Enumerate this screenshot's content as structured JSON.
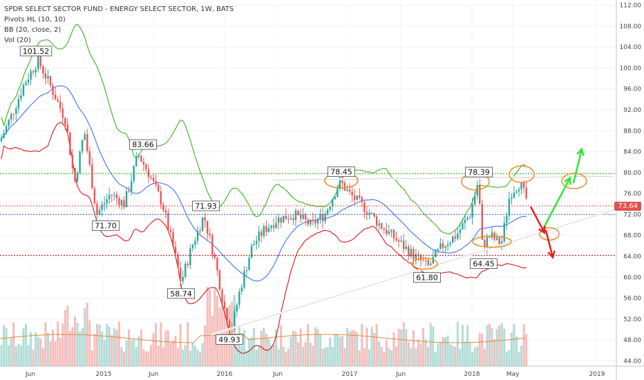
{
  "legend": {
    "title": "SPDR SELECT SECTOR FUND - ENERGY SELECT SECTOR, 1W, BATS",
    "pivots": "Pivots HL (10, 10)",
    "bb": "BB (20, close, 2)",
    "vol": "Vol (20)"
  },
  "last_price_label": "73.64",
  "colors": {
    "up": "#26a69a",
    "down": "#ef5350",
    "bb_upper": "#21b000",
    "bb_mid": "#2962ff",
    "bb_lower": "#d80000",
    "vol_ma": "#e08a3c",
    "green_arrow": "#2ee82e",
    "red_arrow": "#e81e1e",
    "circle": "#f08a24"
  },
  "chart_data": {
    "type": "candlestick",
    "timeframe": "1W",
    "x_tick_labels": [
      "Jun",
      "2015",
      "Jun",
      "2016",
      "Jun",
      "2017",
      "Jun",
      "2018",
      "May",
      "2019"
    ],
    "y_tick_labels": [
      "44.00",
      "48.00",
      "52.00",
      "56.00",
      "60.00",
      "64.00",
      "68.00",
      "72.00",
      "76.00",
      "80.00",
      "84.00",
      "88.00",
      "92.00",
      "96.00",
      "100.00",
      "104.00",
      "108.00",
      "112.00"
    ],
    "ylim": [
      43,
      113
    ],
    "pivot_labels": [
      {
        "label": "101.52",
        "value": 101.52,
        "kind": "high",
        "date_index": 0.06
      },
      {
        "label": "71.70",
        "value": 71.7,
        "kind": "low",
        "date_index": 0.16
      },
      {
        "label": "83.66",
        "value": 83.66,
        "kind": "high",
        "date_index": 0.23
      },
      {
        "label": "58.74",
        "value": 58.74,
        "kind": "low",
        "date_index": 0.29
      },
      {
        "label": "71.93",
        "value": 71.93,
        "kind": "high",
        "date_index": 0.33
      },
      {
        "label": "49.93",
        "value": 49.93,
        "kind": "low",
        "date_index": 0.37
      },
      {
        "label": "78.45",
        "value": 78.45,
        "kind": "high",
        "date_index": 0.56
      },
      {
        "label": "61.80",
        "value": 61.8,
        "kind": "low",
        "date_index": 0.69
      },
      {
        "label": "78.39",
        "value": 78.39,
        "kind": "high",
        "date_index": 0.77
      },
      {
        "label": "64.45",
        "value": 64.45,
        "kind": "low",
        "date_index": 0.78
      }
    ],
    "horizontal_levels": [
      {
        "value": 79.8,
        "color": "#21b000",
        "style": "dotted"
      },
      {
        "value": 73.64,
        "color": "#e0524f",
        "style": "dotted"
      },
      {
        "value": 72.0,
        "color": "#2962ff",
        "style": "dotted"
      },
      {
        "value": 64.2,
        "color": "#d80000",
        "style": "dotted"
      }
    ]
  }
}
